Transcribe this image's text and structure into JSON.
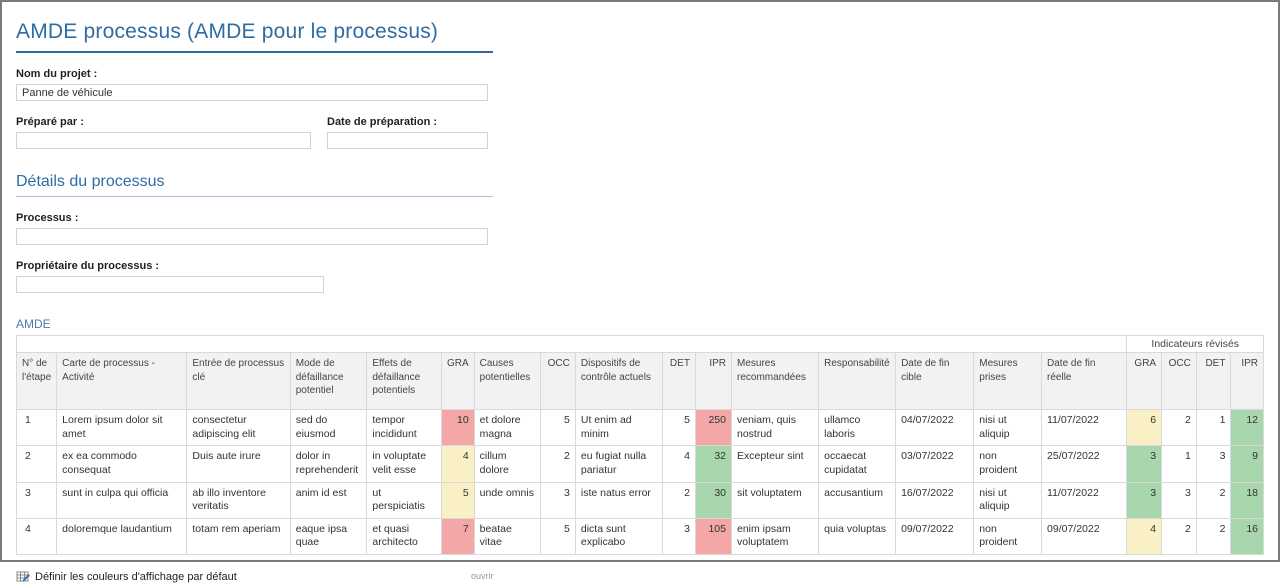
{
  "header": {
    "title": "AMDE processus (AMDE pour le processus)"
  },
  "project_form": {
    "nom_label": "Nom du projet :",
    "nom_value": "Panne de véhicule",
    "prepare_label": "Préparé par :",
    "prepare_value": "",
    "date_prep_label": "Date de préparation :",
    "date_prep_value": ""
  },
  "details_section": {
    "title": "Détails du processus",
    "processus_label": "Processus :",
    "processus_value": "",
    "proprietaire_label": "Propriétaire du processus :",
    "proprietaire_value": ""
  },
  "amde_section": {
    "title": "AMDE",
    "group_header": "Indicateurs révisés",
    "colors": {
      "accent": "#2E6DA4",
      "red": "#F3A7A7",
      "yellow": "#FAF0C6",
      "green": "#A8D7AD"
    },
    "columns": [
      {
        "key": "num",
        "label": "N° de l'étape",
        "width": 30,
        "align": "left"
      },
      {
        "key": "activite",
        "label": "Carte de processus - Activité",
        "width": 138,
        "align": "left"
      },
      {
        "key": "entree",
        "label": "Entrée de processus clé",
        "width": 108,
        "align": "left"
      },
      {
        "key": "mode",
        "label": "Mode de défaillance potentiel",
        "width": 77,
        "align": "left"
      },
      {
        "key": "effets",
        "label": "Effets de défaillance potentiels",
        "width": 76,
        "align": "left"
      },
      {
        "key": "gra",
        "label": "GRA",
        "width": 28,
        "align": "right"
      },
      {
        "key": "causes",
        "label": "Causes potentielles",
        "width": 67,
        "align": "left"
      },
      {
        "key": "occ",
        "label": "OCC",
        "width": 35,
        "align": "right"
      },
      {
        "key": "dispositifs",
        "label": "Dispositifs de contrôle actuels",
        "width": 91,
        "align": "left"
      },
      {
        "key": "det",
        "label": "DET",
        "width": 33,
        "align": "right"
      },
      {
        "key": "ipr",
        "label": "IPR",
        "width": 37,
        "align": "right"
      },
      {
        "key": "mesures_rec",
        "label": "Mesures recommandées",
        "width": 88,
        "align": "left"
      },
      {
        "key": "resp",
        "label": "Responsabilité",
        "width": 77,
        "align": "left"
      },
      {
        "key": "date_cible",
        "label": "Date de fin cible",
        "width": 80,
        "align": "left"
      },
      {
        "key": "mesures_prises",
        "label": "Mesures prises",
        "width": 70,
        "align": "left"
      },
      {
        "key": "date_reelle",
        "label": "Date de fin réelle",
        "width": 88,
        "align": "left"
      },
      {
        "key": "r_gra",
        "label": "GRA",
        "width": 35,
        "align": "right"
      },
      {
        "key": "r_occ",
        "label": "OCC",
        "width": 35,
        "align": "right"
      },
      {
        "key": "r_det",
        "label": "DET",
        "width": 35,
        "align": "right"
      },
      {
        "key": "r_ipr",
        "label": "IPR",
        "width": 33,
        "align": "right"
      }
    ],
    "rows": [
      {
        "cells": [
          "1",
          "Lorem ipsum dolor sit amet",
          "consectetur adipiscing elit",
          "sed do eiusmod",
          "tempor incididunt",
          {
            "v": "10",
            "bg": "red"
          },
          "et dolore magna",
          "5",
          "Ut enim ad minim",
          "5",
          {
            "v": "250",
            "bg": "red"
          },
          "veniam, quis nostrud",
          "ullamco laboris",
          "04/07/2022",
          "nisi ut aliquip",
          "11/07/2022",
          {
            "v": "6",
            "bg": "yellow"
          },
          "2",
          "1",
          {
            "v": "12",
            "bg": "green"
          }
        ]
      },
      {
        "cells": [
          "2",
          "ex ea commodo consequat",
          "Duis aute irure",
          "dolor in reprehenderit",
          "in voluptate velit esse",
          {
            "v": "4",
            "bg": "yellow"
          },
          "cillum dolore",
          "2",
          "eu fugiat nulla pariatur",
          "4",
          {
            "v": "32",
            "bg": "green"
          },
          "Excepteur sint",
          "occaecat cupidatat",
          "03/07/2022",
          "non proident",
          "25/07/2022",
          {
            "v": "3",
            "bg": "green"
          },
          "1",
          "3",
          {
            "v": "9",
            "bg": "green"
          }
        ]
      },
      {
        "cells": [
          "3",
          "sunt in culpa qui officia",
          "ab illo inventore veritatis",
          "anim id est",
          "ut perspiciatis",
          {
            "v": "5",
            "bg": "yellow"
          },
          "unde omnis",
          "3",
          "iste natus error",
          "2",
          {
            "v": "30",
            "bg": "green"
          },
          "sit voluptatem",
          "accusantium",
          "16/07/2022",
          "nisi ut aliquip",
          "11/07/2022",
          {
            "v": "3",
            "bg": "green"
          },
          "3",
          "2",
          {
            "v": "18",
            "bg": "green"
          }
        ]
      },
      {
        "cells": [
          "4",
          "doloremque laudantium",
          "totam rem aperiam",
          "eaque ipsa quae",
          "et quasi architecto",
          {
            "v": "7",
            "bg": "red"
          },
          "beatae vitae",
          "5",
          "dicta sunt explicabo",
          "3",
          {
            "v": "105",
            "bg": "red"
          },
          "enim ipsam voluptatem",
          "quia voluptas",
          "09/07/2022",
          "non proident",
          "09/07/2022",
          {
            "v": "4",
            "bg": "yellow"
          },
          "2",
          "2",
          {
            "v": "16",
            "bg": "green"
          }
        ]
      }
    ]
  },
  "footer": {
    "define_colors_label": "Définir les couleurs d'affichage par défaut",
    "ouvrir_label": "ouvrir"
  }
}
